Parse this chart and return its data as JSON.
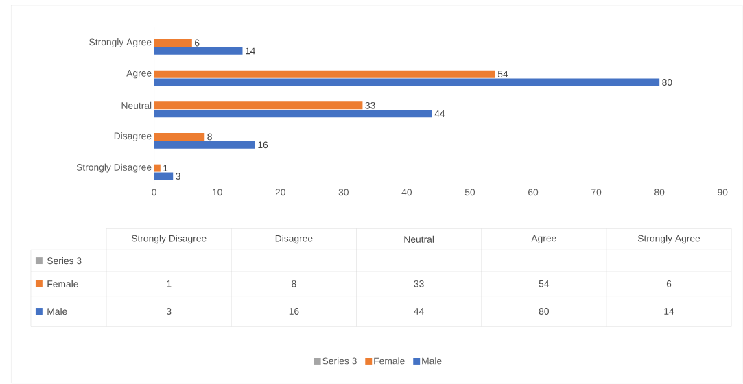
{
  "chart_data": {
    "type": "bar",
    "orientation": "horizontal",
    "categories": [
      "Strongly Agree",
      "Agree",
      "Neutral",
      "Disagree",
      "Strongly Disagree"
    ],
    "series": [
      {
        "name": "Series 3",
        "color": "#a5a5a5",
        "values": [
          null,
          null,
          null,
          null,
          null
        ],
        "value_labels": [
          null,
          null,
          null,
          null,
          null
        ]
      },
      {
        "name": "Female",
        "color": "#ed7d31",
        "values": [
          6,
          54,
          33,
          8,
          1
        ],
        "value_labels": [
          "6",
          "54",
          "33",
          "8",
          "1"
        ]
      },
      {
        "name": "Male",
        "color": "#4472c4",
        "values": [
          14,
          80,
          44,
          16,
          3
        ],
        "value_labels": [
          "14",
          "80",
          "44",
          "16",
          "3"
        ]
      }
    ],
    "xlim": [
      0,
      90
    ],
    "xticks": [
      0,
      10,
      20,
      30,
      40,
      50,
      60,
      70,
      80,
      90
    ],
    "grid": false,
    "legend": "bottom"
  }
}
